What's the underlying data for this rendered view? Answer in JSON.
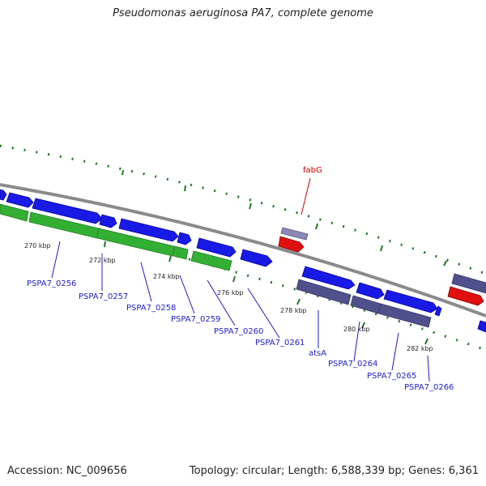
{
  "title": "Pseudomonas aeruginosa PA7, complete genome",
  "footer": {
    "accession": "Accession: NC_009656",
    "summary": "Topology: circular; Length: 6,588,339 bp; Genes: 6,361"
  },
  "colors": {
    "backbone": "#8c8c8c",
    "cds_forward": "#1a1ae6",
    "cds_forward_dark": "#0000b0",
    "cds_reverse_green": "#33b033",
    "cds_reverse_slate": "#50508c",
    "rrna": "#e01010",
    "tick": "#2a7a2a",
    "gene_label": "#1c1ccc",
    "feature_label": "#cc0000"
  },
  "scale_labels": [
    {
      "id": "270",
      "text": "270 kbp"
    },
    {
      "id": "272",
      "text": "272 kbp"
    },
    {
      "id": "274",
      "text": "274 kbp"
    },
    {
      "id": "276",
      "text": "276 kbp"
    },
    {
      "id": "278",
      "text": "278 kbp"
    },
    {
      "id": "280",
      "text": "280 kbp"
    },
    {
      "id": "282",
      "text": "282 kbp"
    }
  ],
  "gene_labels": [
    {
      "id": "0256",
      "text": "PSPA7_0256"
    },
    {
      "id": "0257",
      "text": "PSPA7_0257"
    },
    {
      "id": "0258",
      "text": "PSPA7_0258"
    },
    {
      "id": "0259",
      "text": "PSPA7_0259"
    },
    {
      "id": "0260",
      "text": "PSPA7_0260"
    },
    {
      "id": "0261",
      "text": "PSPA7_0261"
    },
    {
      "id": "atsA",
      "text": "atsA"
    },
    {
      "id": "0264",
      "text": "PSPA7_0264"
    },
    {
      "id": "0265",
      "text": "PSPA7_0265"
    },
    {
      "id": "0266",
      "text": "PSPA7_0266"
    }
  ],
  "feature_labels": [
    {
      "id": "fabG",
      "text": "fabG"
    }
  ]
}
